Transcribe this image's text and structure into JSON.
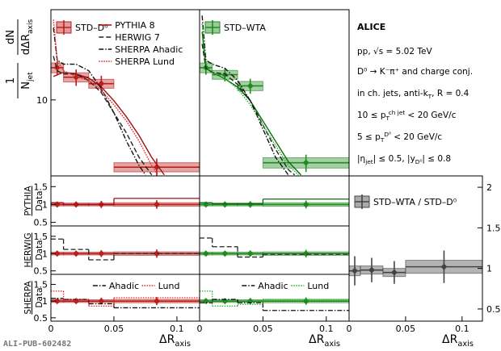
{
  "chart_data": [
    {
      "type": "line",
      "log": true,
      "xlim": [
        0,
        0.118
      ],
      "ylim": [
        3.4,
        36
      ],
      "yticks": [
        10
      ],
      "legend": "upper left",
      "series": [
        {
          "name": "STD–D⁰",
          "color": "#b8201c",
          "style": "points",
          "bins": [
            0,
            0.01,
            0.03,
            0.05,
            0.118
          ],
          "values": [
            15.8,
            13.8,
            12.6,
            3.85
          ],
          "errors": [
            1.5,
            1.6,
            1.5,
            0.5
          ],
          "sys": [
            1.1,
            0.9,
            0.8,
            0.25
          ]
        },
        {
          "name": "PYTHIA 8",
          "color": "#a01010",
          "style": "line",
          "dash": "solid",
          "x": [
            0.002,
            0.01,
            0.02,
            0.03,
            0.04,
            0.05,
            0.06,
            0.07,
            0.08,
            0.09
          ],
          "values": [
            13.96,
            14.79,
            14.45,
            13.65,
            12.02,
            9.89,
            7.85,
            6.03,
            4.42,
            3.45
          ]
        },
        {
          "name": "HERWIG 7",
          "color": "#222222",
          "style": "line",
          "dash": "dashed",
          "x": [
            0.002,
            0.005,
            0.01,
            0.02,
            0.03,
            0.04,
            0.05,
            0.06,
            0.07,
            0.08
          ],
          "values": [
            18.62,
            15.14,
            14.45,
            14.45,
            13.18,
            11.09,
            8.32,
            6.24,
            4.42,
            3.45
          ]
        },
        {
          "name": "SHERPA Ahadic",
          "color": "#111111",
          "style": "line",
          "dash": "dashdot",
          "x": [
            0.002,
            0.005,
            0.01,
            0.02,
            0.03,
            0.04,
            0.05,
            0.06,
            0.07,
            0.075
          ],
          "values": [
            27.86,
            17.58,
            16.6,
            16.6,
            15.14,
            11.75,
            8.32,
            5.56,
            3.94,
            3.45
          ]
        },
        {
          "name": "SHERPA Lund",
          "color": "#e02020",
          "style": "line",
          "dash": "dotted",
          "x": [
            0.002,
            0.005,
            0.01,
            0.02,
            0.03,
            0.04,
            0.05,
            0.06,
            0.07,
            0.08,
            0.085
          ],
          "values": [
            31.26,
            17.58,
            15.14,
            13.96,
            13.18,
            11.48,
            9.33,
            7.41,
            5.56,
            3.94,
            3.45
          ]
        }
      ]
    },
    {
      "type": "line",
      "log": true,
      "xlim": [
        0,
        0.118
      ],
      "ylim": [
        3.4,
        36
      ],
      "legend": "upper left",
      "series": [
        {
          "name": "STD–WTA",
          "color": "#1f8a1f",
          "style": "points",
          "bins": [
            0,
            0.01,
            0.03,
            0.05,
            0.118
          ],
          "values": [
            15.8,
            14.3,
            12.2,
            4.1
          ],
          "errors": [
            1.5,
            1.3,
            1.3,
            0.5
          ],
          "sys": [
            1.1,
            0.9,
            0.8,
            0.3
          ]
        },
        {
          "color": "#0b6b0b",
          "style": "line",
          "dash": "solid",
          "x": [
            0.002,
            0.005,
            0.01,
            0.02,
            0.03,
            0.04,
            0.05,
            0.06,
            0.07,
            0.08
          ],
          "values": [
            26.3,
            15.67,
            14.79,
            13.49,
            12.02,
            9.89,
            7.41,
            5.56,
            4.17,
            3.45
          ]
        },
        {
          "color": "#222222",
          "style": "line",
          "dash": "dashed",
          "x": [
            0.002,
            0.005,
            0.01,
            0.02,
            0.03,
            0.04,
            0.05,
            0.06,
            0.07,
            0.075
          ],
          "values": [
            22.13,
            15.67,
            14.79,
            14.45,
            12.45,
            9.89,
            7.0,
            4.95,
            3.72,
            3.45
          ]
        },
        {
          "color": "#111111",
          "style": "line",
          "dash": "dashdot",
          "x": [
            0.002,
            0.005,
            0.01,
            0.02,
            0.03,
            0.04,
            0.05,
            0.06,
            0.07
          ],
          "values": [
            33.11,
            17.58,
            16.6,
            15.67,
            13.18,
            9.89,
            6.61,
            4.42,
            3.45
          ]
        },
        {
          "color": "#22b022",
          "style": "line",
          "dash": "dotted",
          "x": [
            0.002,
            0.005,
            0.01,
            0.02,
            0.03,
            0.04,
            0.05,
            0.06,
            0.07,
            0.078
          ],
          "values": [
            29.51,
            16.6,
            14.79,
            13.49,
            11.75,
            9.33,
            7.0,
            5.25,
            3.94,
            3.45
          ]
        }
      ]
    },
    {
      "type": "line",
      "xlim": [
        0,
        0.118
      ],
      "ylim": [
        0.4,
        1.8
      ],
      "yticks": [
        0.5,
        1,
        1.5
      ],
      "ylabel": [
        "PYTHIA",
        "Data"
      ],
      "series": [
        {
          "color": "#b8201c",
          "style": "points",
          "bins": [
            0,
            0.01,
            0.03,
            0.05,
            0.118
          ],
          "values": [
            1,
            1,
            1,
            1
          ],
          "errors": [
            0.06,
            0.08,
            0.1,
            0.12
          ],
          "sys": [
            0.04,
            0.04,
            0.04,
            0.05
          ]
        },
        {
          "color": "#a01010",
          "style": "step",
          "dash": "solid",
          "bins": [
            0,
            0.01,
            0.03,
            0.05,
            0.118
          ],
          "values": [
            1.05,
            1.0,
            1.0,
            1.17
          ]
        }
      ]
    },
    {
      "type": "line",
      "xlim": [
        0,
        0.118
      ],
      "ylim": [
        0.4,
        1.8
      ],
      "series": [
        {
          "color": "#1f8a1f",
          "style": "points",
          "bins": [
            0,
            0.01,
            0.03,
            0.05,
            0.118
          ],
          "values": [
            1,
            1,
            1,
            1
          ],
          "errors": [
            0.06,
            0.07,
            0.09,
            0.11
          ],
          "sys": [
            0.04,
            0.04,
            0.04,
            0.05
          ]
        },
        {
          "color": "#0b6b0b",
          "style": "step",
          "dash": "solid",
          "bins": [
            0,
            0.01,
            0.03,
            0.05,
            0.118
          ],
          "values": [
            1.05,
            1.02,
            1.02,
            1.15
          ]
        }
      ]
    },
    {
      "type": "line",
      "xlim": [
        0,
        0.118
      ],
      "ylim": [
        0.4,
        1.8
      ],
      "yticks": [
        0.5,
        1,
        1.5
      ],
      "ylabel": [
        "HERWIG",
        "Data"
      ],
      "series": [
        {
          "color": "#b8201c",
          "style": "points",
          "bins": [
            0,
            0.01,
            0.03,
            0.05,
            0.118
          ],
          "values": [
            1,
            1,
            1,
            1
          ],
          "errors": [
            0.06,
            0.08,
            0.1,
            0.12
          ],
          "sys": [
            0.04,
            0.04,
            0.04,
            0.05
          ]
        },
        {
          "color": "#222222",
          "style": "step",
          "dash": "dashed",
          "bins": [
            0,
            0.01,
            0.03,
            0.05,
            0.118
          ],
          "values": [
            1.42,
            1.12,
            0.82,
            1.0
          ]
        }
      ]
    },
    {
      "type": "line",
      "xlim": [
        0,
        0.118
      ],
      "ylim": [
        0.4,
        1.8
      ],
      "series": [
        {
          "color": "#1f8a1f",
          "style": "points",
          "bins": [
            0,
            0.01,
            0.03,
            0.05,
            0.118
          ],
          "values": [
            1,
            1,
            1,
            1
          ],
          "errors": [
            0.06,
            0.07,
            0.09,
            0.11
          ],
          "sys": [
            0.04,
            0.04,
            0.04,
            0.05
          ]
        },
        {
          "color": "#222222",
          "style": "step",
          "dash": "dashed",
          "bins": [
            0,
            0.01,
            0.03,
            0.05,
            0.118
          ],
          "values": [
            1.45,
            1.2,
            0.9,
            0.98
          ]
        }
      ]
    },
    {
      "type": "line",
      "xlim": [
        0,
        0.118
      ],
      "ylim": [
        0.4,
        1.8
      ],
      "yticks": [
        0.5,
        1,
        1.5
      ],
      "xticks": [
        0,
        0.05,
        0.1
      ],
      "ylabel": [
        "SHERPA",
        "Data"
      ],
      "legend": "top",
      "series": [
        {
          "color": "#b8201c",
          "style": "points",
          "bins": [
            0,
            0.01,
            0.03,
            0.05,
            0.118
          ],
          "values": [
            1,
            1,
            1,
            1
          ],
          "errors": [
            0.06,
            0.08,
            0.1,
            0.12
          ],
          "sys": [
            0.04,
            0.04,
            0.04,
            0.05
          ]
        },
        {
          "name": "Ahadic",
          "color": "#111111",
          "style": "step",
          "dash": "dashdot",
          "bins": [
            0,
            0.01,
            0.03,
            0.05,
            0.118
          ],
          "values": [
            1.08,
            1.05,
            0.92,
            0.8
          ]
        },
        {
          "name": "Lund",
          "color": "#e02020",
          "style": "step",
          "dash": "dotted",
          "bins": [
            0,
            0.01,
            0.03,
            0.05,
            0.118
          ],
          "values": [
            1.3,
            1.05,
            0.85,
            1.1
          ]
        }
      ]
    },
    {
      "type": "line",
      "xlim": [
        0,
        0.118
      ],
      "ylim": [
        0.4,
        1.8
      ],
      "xticks": [
        0,
        0.05,
        0.1
      ],
      "legend": "top",
      "series": [
        {
          "color": "#1f8a1f",
          "style": "points",
          "bins": [
            0,
            0.01,
            0.03,
            0.05,
            0.118
          ],
          "values": [
            1,
            1,
            1,
            1
          ],
          "errors": [
            0.06,
            0.07,
            0.09,
            0.11
          ],
          "sys": [
            0.04,
            0.04,
            0.04,
            0.05
          ]
        },
        {
          "name": "Ahadic",
          "color": "#111111",
          "style": "step",
          "dash": "dashdot",
          "bins": [
            0,
            0.01,
            0.03,
            0.05,
            0.118
          ],
          "values": [
            0.95,
            1.05,
            0.95,
            0.72
          ]
        },
        {
          "name": "Lund",
          "color": "#22b022",
          "style": "step",
          "dash": "dotted",
          "bins": [
            0,
            0.01,
            0.03,
            0.05,
            0.118
          ],
          "values": [
            1.3,
            0.85,
            0.9,
            1.05
          ]
        }
      ]
    },
    {
      "type": "line",
      "xlim": [
        0,
        0.118
      ],
      "ylim": [
        0.35,
        2.14
      ],
      "yticks": [
        0.5,
        1,
        1.5,
        2
      ],
      "xticks": [
        0,
        0.05,
        0.1
      ],
      "yaxis": "right",
      "legend": "upper left",
      "series": [
        {
          "name": "STD–WTA / STD–D⁰",
          "color": "#444444",
          "style": "points",
          "bins": [
            0,
            0.01,
            0.03,
            0.05,
            0.118
          ],
          "values": [
            0.97,
            0.98,
            0.95,
            1.02
          ],
          "errors": [
            0.18,
            0.15,
            0.14,
            0.2
          ],
          "sys": [
            0.06,
            0.05,
            0.05,
            0.08
          ]
        }
      ]
    }
  ],
  "y_label": [
    [
      {
        "text": "1"
      }
    ],
    [
      {
        "text": "N"
      },
      {
        "text": "jet",
        "pos": "sub"
      }
    ],
    [
      {
        "text": "dN"
      }
    ],
    [
      {
        "text": "dΔR"
      },
      {
        "text": "axis",
        "pos": "sub"
      }
    ]
  ],
  "x_label": [
    {
      "text": "ΔR"
    },
    {
      "text": "axis",
      "pos": "sub"
    }
  ],
  "experiment": "ALICE",
  "info": [
    [
      {
        "text": "pp, √s = 5.02 TeV"
      }
    ],
    [
      {
        "text": "D⁰ → K⁻π⁺ and charge conj."
      }
    ],
    [
      {
        "text": "in ch. jets, anti-k"
      },
      {
        "text": "T",
        "pos": "sub"
      },
      {
        "text": ", R = 0.4"
      }
    ],
    [
      {
        "text": "10 ≤ p"
      },
      {
        "text": "T",
        "pos": "sub"
      },
      {
        "text": "ch jet",
        "pos": "sup"
      },
      {
        "text": " < 20 GeV/c"
      }
    ],
    [
      {
        "text": "5 ≤ p"
      },
      {
        "text": "T",
        "pos": "sub"
      },
      {
        "text": "D⁰",
        "pos": "sup"
      },
      {
        "text": " < 20 GeV/c"
      }
    ],
    [
      {
        "text": "|η"
      },
      {
        "text": "jet",
        "pos": "sub"
      },
      {
        "text": "| ≤ 0.5, |y"
      },
      {
        "text": "D⁰",
        "pos": "sub"
      },
      {
        "text": "| ≤ 0.8"
      }
    ]
  ],
  "footer": "ALI-PUB-602482"
}
